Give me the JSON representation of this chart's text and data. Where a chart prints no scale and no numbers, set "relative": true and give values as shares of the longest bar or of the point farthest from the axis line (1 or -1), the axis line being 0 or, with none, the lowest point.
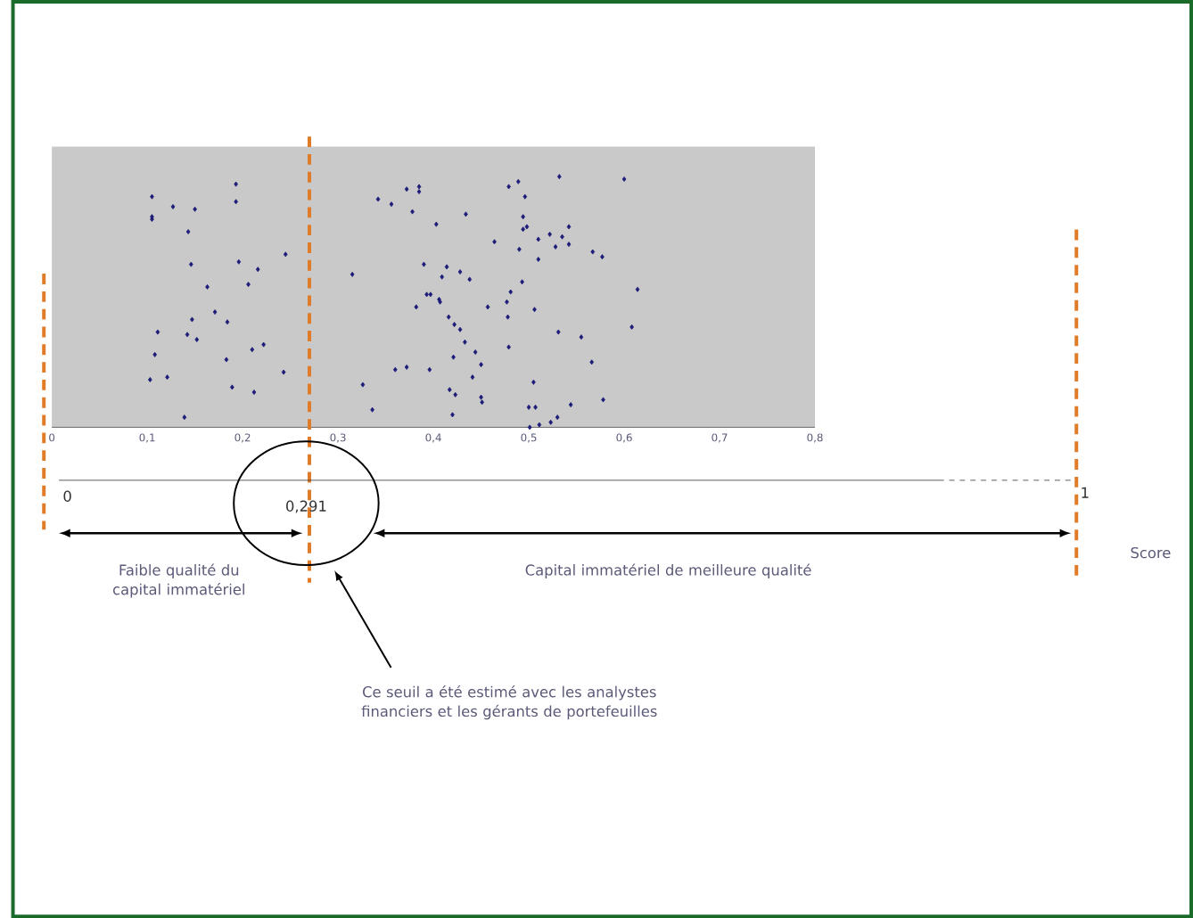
{
  "chart_data": {
    "type": "scatter",
    "relative": true,
    "color": "#1c1c78",
    "marker": "diamond",
    "xlim": [
      0,
      0.8
    ],
    "xticks": [
      {
        "value": 0,
        "label": "0"
      },
      {
        "value": 0.1,
        "label": "0,1"
      },
      {
        "value": 0.2,
        "label": "0,2"
      },
      {
        "value": 0.3,
        "label": "0,3"
      },
      {
        "value": 0.4,
        "label": "0,4"
      },
      {
        "value": 0.5,
        "label": "0,5"
      },
      {
        "value": 0.6,
        "label": "0,6"
      },
      {
        "value": 0.7,
        "label": "0,7"
      },
      {
        "value": 0.8,
        "label": "0,8"
      }
    ],
    "x": [
      0.105,
      0.127,
      0.105,
      0.105,
      0.15,
      0.193,
      0.193,
      0.143,
      0.245,
      0.146,
      0.196,
      0.216,
      0.206,
      0.163,
      0.171,
      0.184,
      0.147,
      0.111,
      0.142,
      0.152,
      0.222,
      0.21,
      0.108,
      0.183,
      0.243,
      0.103,
      0.121,
      0.189,
      0.212,
      0.139,
      0.315,
      0.326,
      0.336,
      0.342,
      0.356,
      0.372,
      0.385,
      0.385,
      0.378,
      0.36,
      0.372,
      0.396,
      0.403,
      0.434,
      0.39,
      0.414,
      0.409,
      0.428,
      0.438,
      0.393,
      0.397,
      0.406,
      0.407,
      0.382,
      0.416,
      0.422,
      0.428,
      0.433,
      0.444,
      0.421,
      0.45,
      0.441,
      0.417,
      0.423,
      0.45,
      0.451,
      0.42,
      0.479,
      0.489,
      0.532,
      0.6,
      0.496,
      0.494,
      0.498,
      0.494,
      0.464,
      0.49,
      0.51,
      0.522,
      0.535,
      0.542,
      0.528,
      0.542,
      0.51,
      0.567,
      0.577,
      0.493,
      0.481,
      0.477,
      0.457,
      0.478,
      0.506,
      0.614,
      0.608,
      0.531,
      0.555,
      0.479,
      0.566,
      0.505,
      0.578,
      0.544,
      0.5,
      0.507,
      0.501,
      0.511,
      0.523,
      0.53
    ],
    "values": [
      0.92,
      0.88,
      0.84,
      0.83,
      0.87,
      0.97,
      0.9,
      0.78,
      0.69,
      0.65,
      0.66,
      0.63,
      0.57,
      0.56,
      0.46,
      0.42,
      0.43,
      0.38,
      0.37,
      0.35,
      0.33,
      0.31,
      0.29,
      0.27,
      0.22,
      0.19,
      0.2,
      0.16,
      0.14,
      0.04,
      0.61,
      0.17,
      0.07,
      0.91,
      0.89,
      0.95,
      0.96,
      0.94,
      0.86,
      0.23,
      0.24,
      0.23,
      0.81,
      0.85,
      0.65,
      0.64,
      0.6,
      0.62,
      0.59,
      0.53,
      0.53,
      0.51,
      0.5,
      0.48,
      0.44,
      0.41,
      0.39,
      0.34,
      0.3,
      0.28,
      0.25,
      0.2,
      0.15,
      0.13,
      0.12,
      0.1,
      0.05,
      0.96,
      0.98,
      1.0,
      0.99,
      0.92,
      0.84,
      0.8,
      0.79,
      0.74,
      0.71,
      0.75,
      0.77,
      0.76,
      0.8,
      0.72,
      0.73,
      0.67,
      0.7,
      0.68,
      0.58,
      0.54,
      0.5,
      0.48,
      0.44,
      0.47,
      0.55,
      0.4,
      0.38,
      0.36,
      0.32,
      0.26,
      0.18,
      0.11,
      0.09,
      0.08,
      0.08,
      0.0,
      0.01,
      0.02,
      0.04
    ],
    "ref_lines": [
      {
        "axis": "x",
        "value": 0.27,
        "color": "#e07b28",
        "line_style": "dashed"
      }
    ],
    "annotations": [
      "0",
      "0,291",
      "1",
      "Score",
      "Faible qualité du capital immatériel",
      "Capital immatériel de meilleure qualité",
      "Ce seuil a été estimé avec les analystes financiers et les gérants de portefeuilles"
    ]
  }
}
